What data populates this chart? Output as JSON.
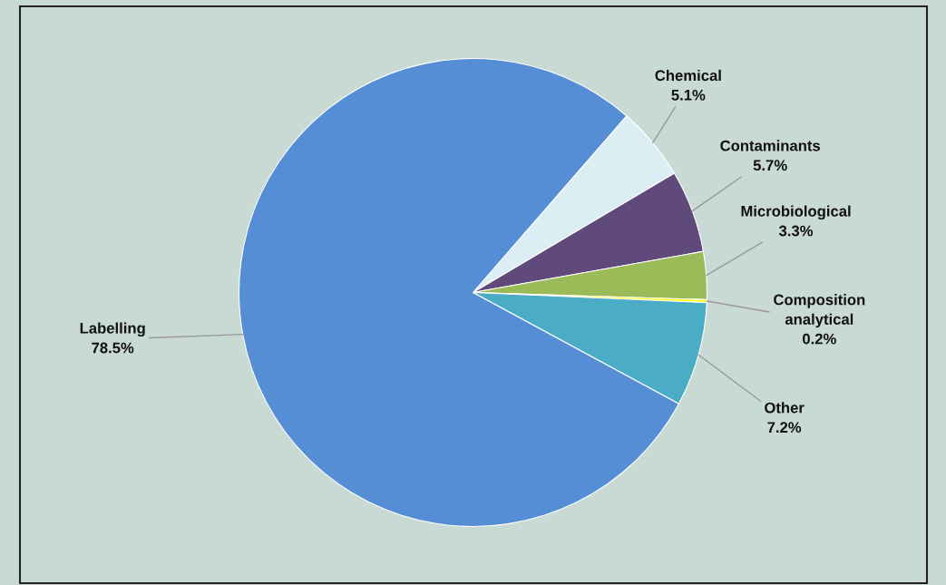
{
  "chart_data": {
    "type": "pie",
    "categories": [
      "Chemical",
      "Contaminants",
      "Microbiological",
      "Composition analytical",
      "Other",
      "Labelling"
    ],
    "values": [
      5.1,
      5.7,
      3.3,
      0.2,
      7.2,
      78.5
    ],
    "colors": [
      "#dbeef4",
      "#604a7b",
      "#9bbb59",
      "#ffff00",
      "#4bacc6",
      "#558ed5"
    ],
    "value_labels": [
      "5.1%",
      "5.7%",
      "3.3%",
      "0.2%",
      "7.2%",
      "78.5%"
    ],
    "legend": false
  }
}
